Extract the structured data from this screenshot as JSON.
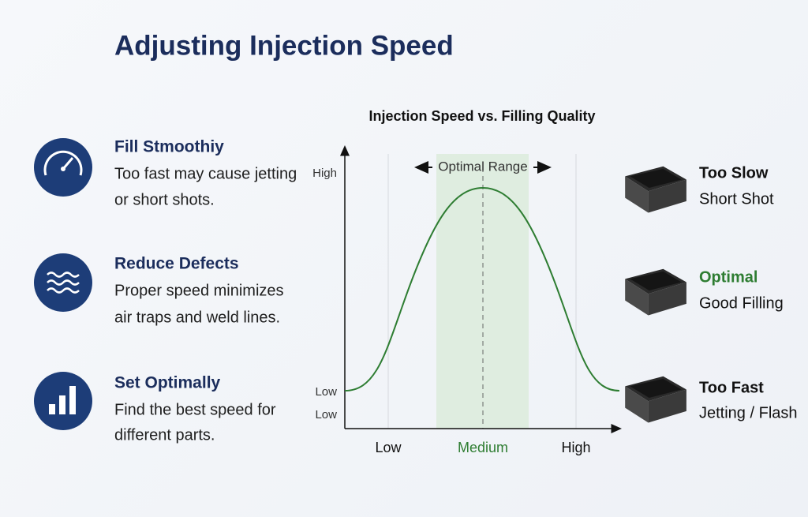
{
  "header": {
    "title": "Adjusting Injection Speed"
  },
  "features": [
    {
      "title": "Fill Stmoothiy",
      "lines": [
        "Too fast may cause jetting",
        "or short shots."
      ]
    },
    {
      "title": "Reduce Defects",
      "lines": [
        "Proper speed minimizes",
        "air traps and weld lines."
      ]
    },
    {
      "title": "Set Optimally",
      "lines": [
        "Find the best speed for",
        "different parts."
      ]
    }
  ],
  "graph": {
    "title": "Injection Speed vs. Filling Quality",
    "range_label": "Optimal Range",
    "y_labels": [
      "High",
      "Low",
      "Low"
    ],
    "x_labels": [
      "Low",
      "Medium",
      "High"
    ]
  },
  "outcomes": [
    {
      "label": "Too Slow",
      "detail": "Short Shot"
    },
    {
      "label": "Optimal",
      "detail": "Good Filling"
    },
    {
      "label": "Too Fast",
      "detail": "Jetting / Flash"
    }
  ]
}
